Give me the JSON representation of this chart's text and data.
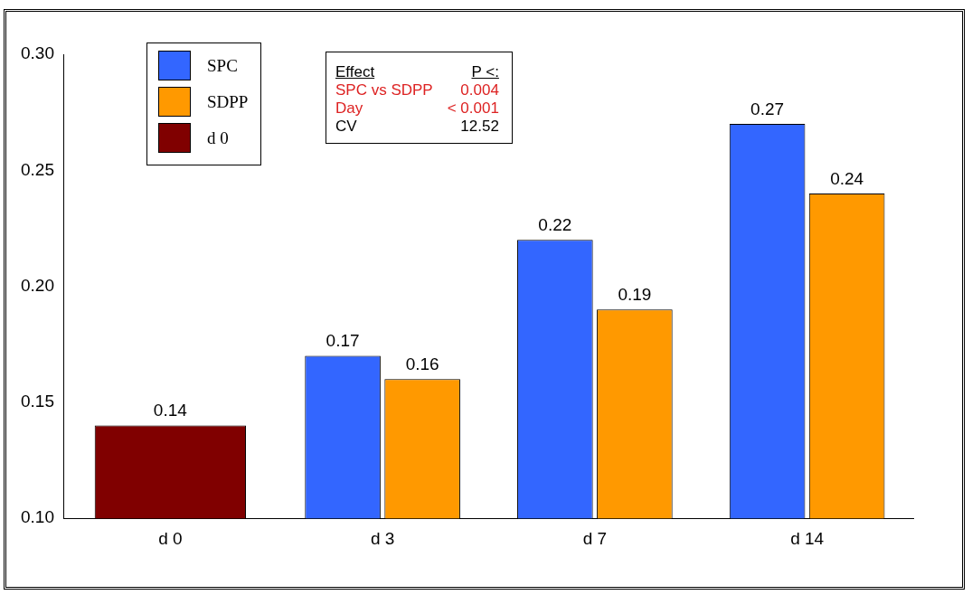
{
  "chart_data": {
    "type": "bar",
    "categories": [
      "d 0",
      "d 3",
      "d 7",
      "d 14"
    ],
    "series": [
      {
        "name": "SPC",
        "color": "#3366ff",
        "values": [
          null,
          0.17,
          0.22,
          0.27
        ]
      },
      {
        "name": "SDPP",
        "color": "#ff9900",
        "values": [
          null,
          0.16,
          0.19,
          0.24
        ]
      },
      {
        "name": "d 0",
        "color": "#800000",
        "values": [
          0.14,
          null,
          null,
          null
        ]
      }
    ],
    "ylim": [
      0.1,
      0.3
    ],
    "yticks": [
      {
        "value": 0.1,
        "label": "0.10"
      },
      {
        "value": 0.15,
        "label": "0.15"
      },
      {
        "value": 0.2,
        "label": "0.20"
      },
      {
        "value": 0.25,
        "label": "0.25"
      },
      {
        "value": 0.3,
        "label": "0.30"
      }
    ],
    "data_labels": true,
    "grid": false,
    "legend": "top left",
    "annotations": [
      "Effect",
      "P <:",
      "SPC vs SDPP",
      "0.004",
      "Day",
      "< 0.001",
      "CV",
      "12.52"
    ]
  }
}
